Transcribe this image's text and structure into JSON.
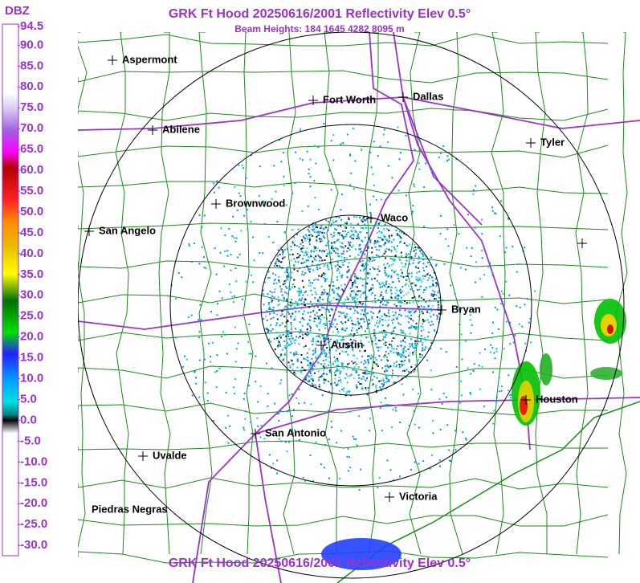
{
  "header": {
    "title": "GRK Ft Hood 20250616/2001 Reflectivity Elev 0.5°",
    "subtitle": "Beam Heights: 184 1645 4282 8095 m",
    "footer_title": "GRK Ft Hood 20250616/2001 Reflectivity Elev 0.5°"
  },
  "legend": {
    "title": "DBZ",
    "ticks": [
      94.5,
      {
        "value": 90,
        "label": "90.0"
      },
      {
        "value": 85,
        "label": "85.0"
      },
      {
        "value": 80,
        "label": "80.0"
      },
      {
        "value": 75,
        "label": "75.0"
      },
      {
        "value": 70,
        "label": "70.0"
      },
      {
        "value": 65,
        "label": "65.0"
      },
      {
        "value": 60,
        "label": "60.0"
      },
      {
        "value": 55,
        "label": "55.0"
      },
      {
        "value": 50,
        "label": "50.0"
      },
      {
        "value": 45,
        "label": "45.0"
      },
      {
        "value": 40,
        "label": "40.0"
      },
      {
        "value": 35,
        "label": "35.0"
      },
      {
        "value": 30,
        "label": "30.0"
      },
      {
        "value": 25,
        "label": "25.0"
      },
      {
        "value": 20,
        "label": "20.0"
      },
      {
        "value": 15,
        "label": "15.0"
      },
      {
        "value": 10,
        "label": "10.0"
      },
      {
        "value": 5,
        "label": "5.0"
      },
      {
        "value": 0,
        "label": "0.0"
      },
      {
        "value": -5,
        "label": "-5.0"
      },
      {
        "value": -10,
        "label": "-10.0"
      },
      {
        "value": -15,
        "label": "-15.0"
      },
      {
        "value": -20,
        "label": "-20.0"
      },
      {
        "value": -25,
        "label": "-25.0"
      },
      {
        "value": -30,
        "label": "-30.0"
      }
    ]
  },
  "cities": [
    "Aspermont",
    "Fort Worth",
    "Dallas",
    "Abilene",
    "Tyler",
    "Brownwood",
    "Waco",
    "San Angelo",
    "Bryan",
    "Austin",
    "Houston",
    "San Antonio",
    "Uvalde",
    "Victoria",
    "Piedras Negras"
  ]
}
